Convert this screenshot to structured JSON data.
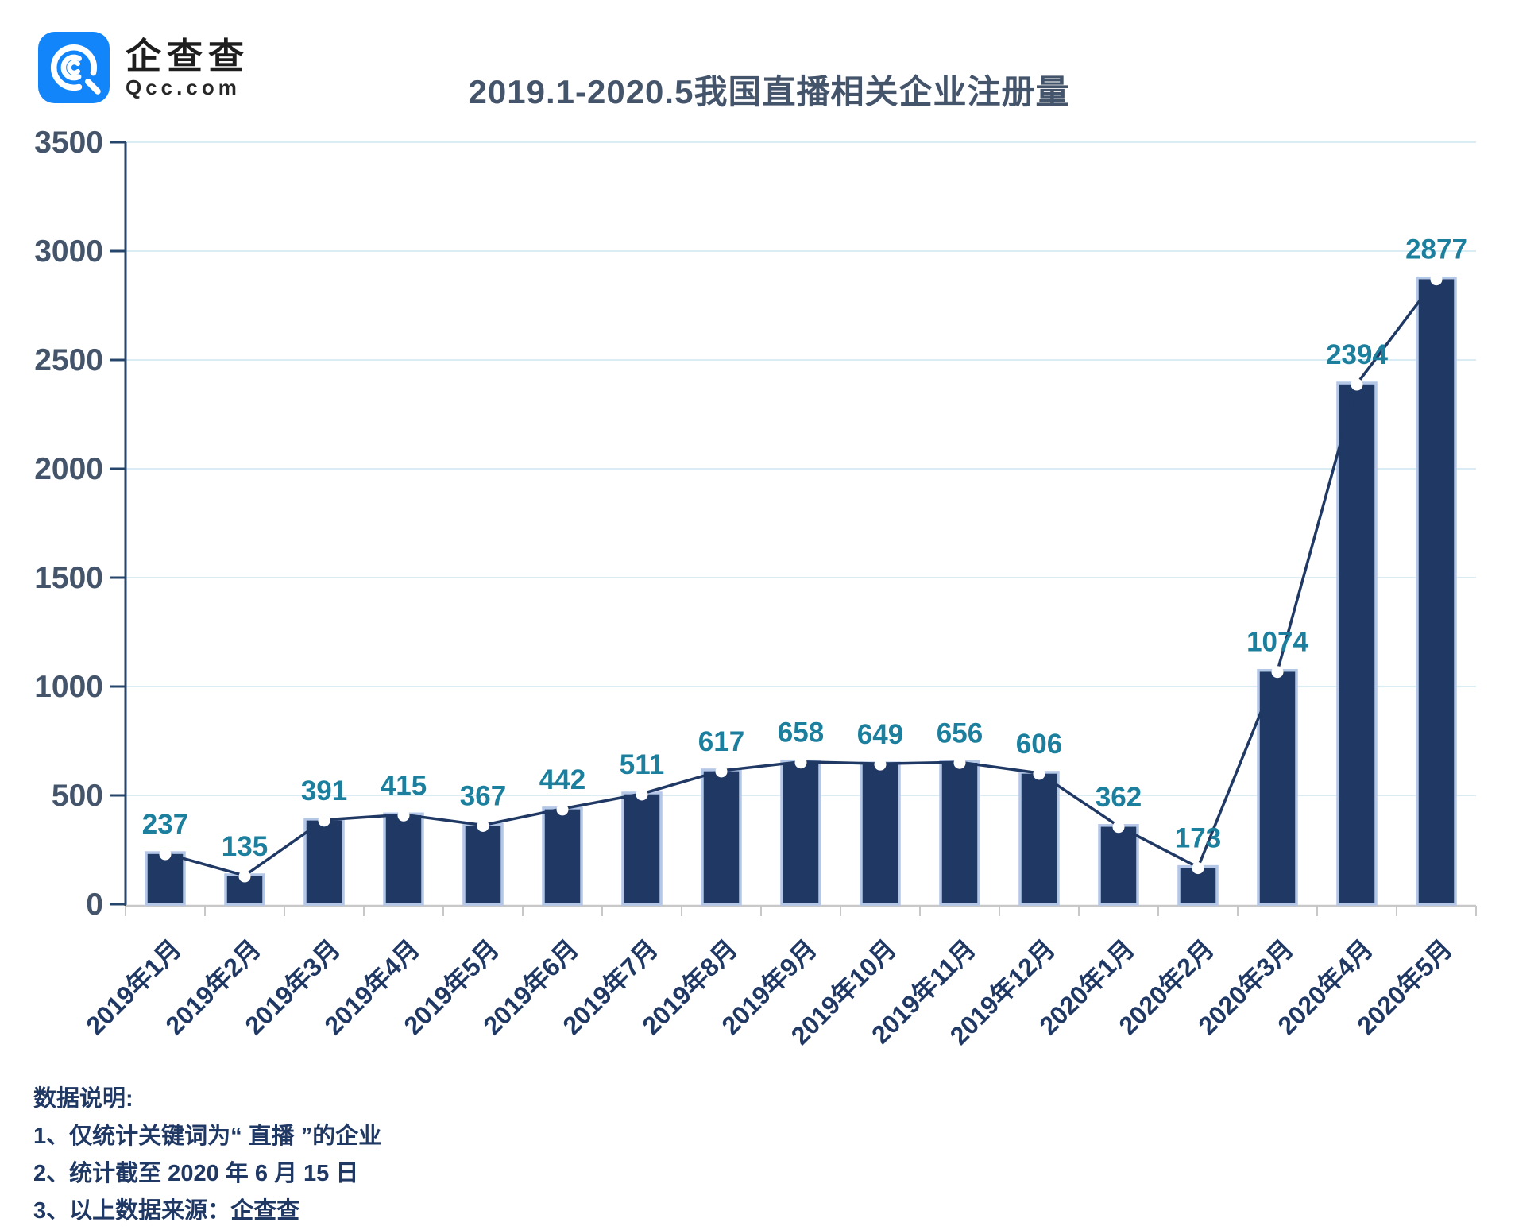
{
  "logo": {
    "brand_cn": "企查查",
    "brand_domain": "Qcc.com",
    "square_color": "#1285FB"
  },
  "chart_data": {
    "type": "bar",
    "title": "2019.1-2020.5我国直播相关企业注册量",
    "categories": [
      "2019年1月",
      "2019年2月",
      "2019年3月",
      "2019年4月",
      "2019年5月",
      "2019年6月",
      "2019年7月",
      "2019年8月",
      "2019年9月",
      "2019年10月",
      "2019年11月",
      "2019年12月",
      "2020年1月",
      "2020年2月",
      "2020年3月",
      "2020年4月",
      "2020年5月"
    ],
    "values": [
      237,
      135,
      391,
      415,
      367,
      442,
      511,
      617,
      658,
      649,
      656,
      606,
      362,
      173,
      1074,
      2394,
      2877
    ],
    "series_overlay": "line-with-markers",
    "xlabel": "",
    "ylabel": "",
    "ylim": [
      0,
      3500
    ],
    "ytick_interval": 500,
    "grid": true,
    "legend": "none",
    "colors": {
      "bar": "#1F3864",
      "bar_border": "#B4C7E7",
      "line": "#1F3864",
      "marker": "#FFFFFF",
      "value_label": "#1B7F9D",
      "axis_label": "#44546A",
      "category_label": "#1F3864",
      "grid": "#DAEDF4",
      "axis_line": "#C8C8C8",
      "axis_spine": "#25456A"
    }
  },
  "notes": {
    "heading": "数据说明:",
    "items": [
      "1、仅统计关键词为“ 直播 ”的企业",
      "2、统计截至 2020 年 6 月 15 日",
      "3、以上数据来源：企查查"
    ]
  }
}
